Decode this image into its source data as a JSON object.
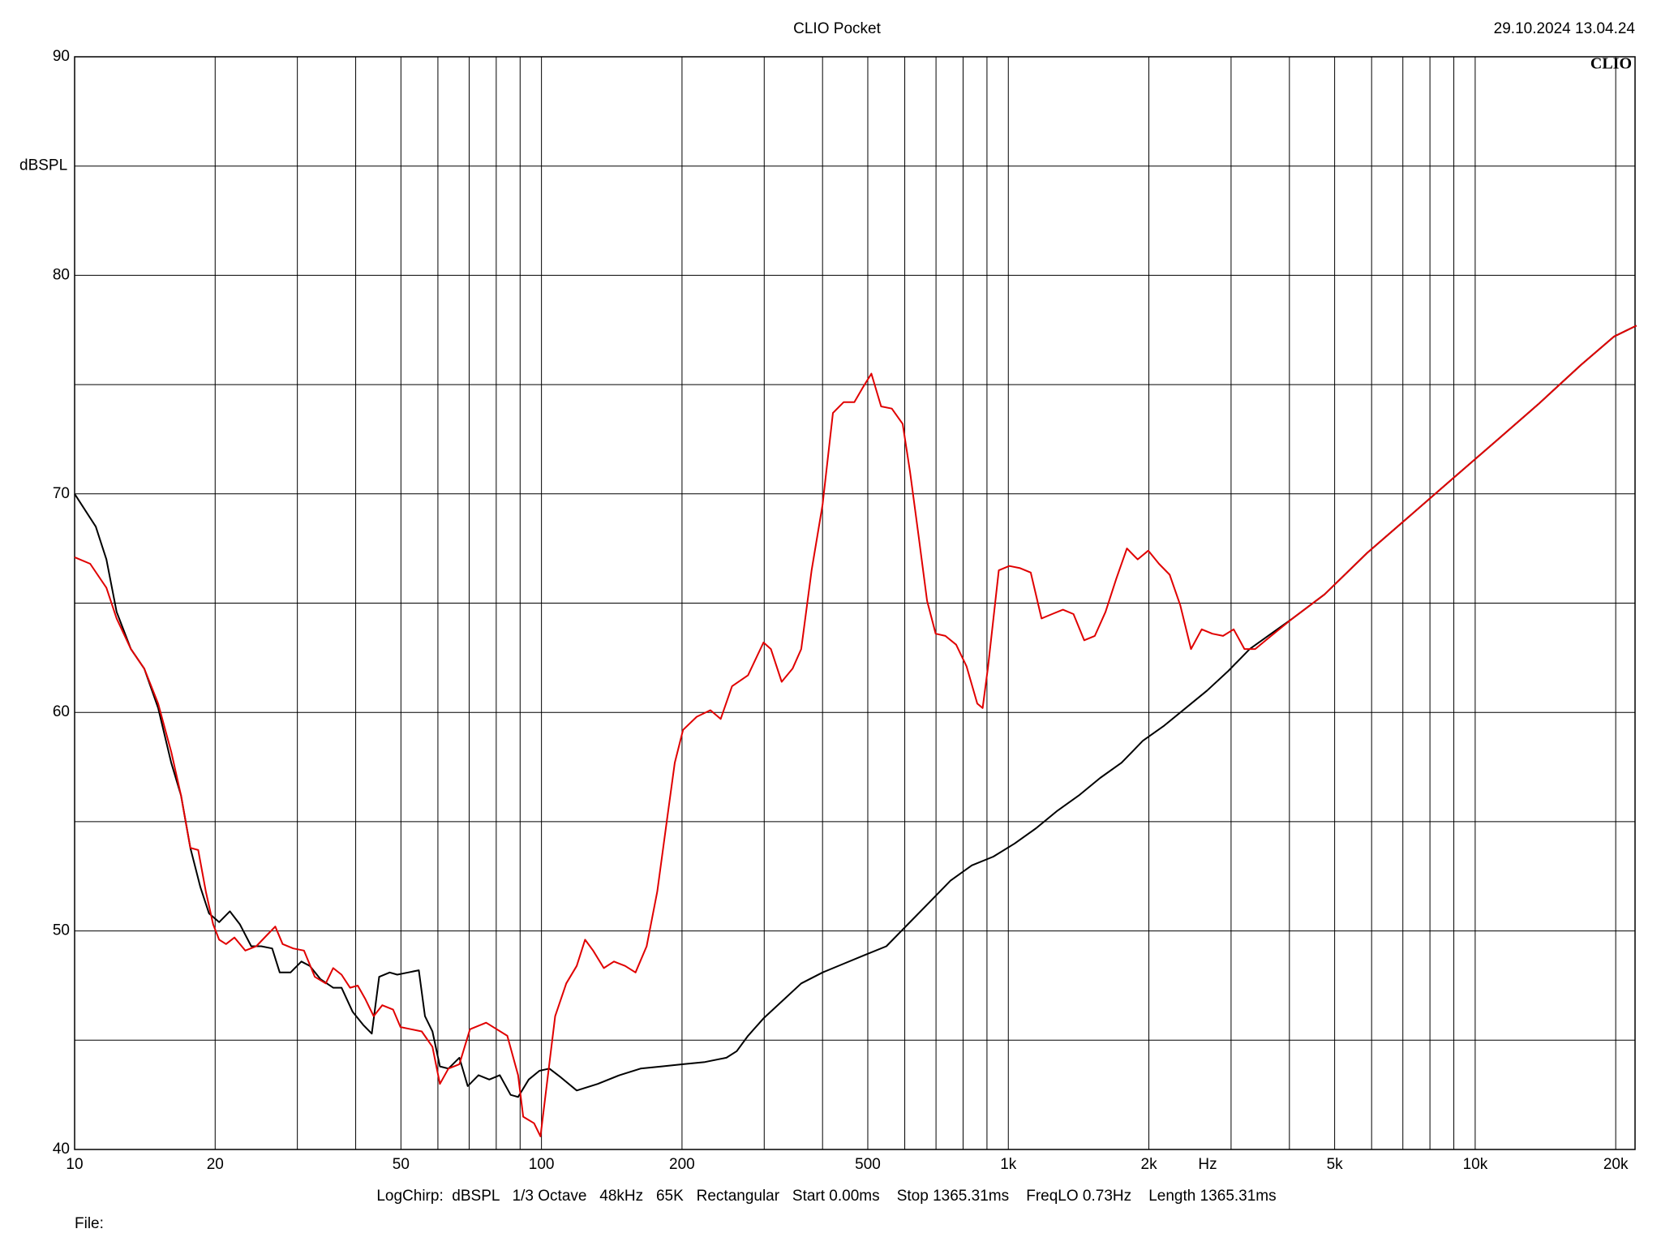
{
  "chart_data": {
    "type": "line",
    "title": "CLIO Pocket",
    "date": "29.10.2024 13.04.24",
    "logo": "CLIO",
    "y_label": "dBSPL",
    "x_label": "Hz",
    "footer": "LogChirp:  dBSPL   1/3 Octave   48kHz   65K   Rectangular   Start 0.00ms    Stop 1365.31ms    FreqLO 0.73Hz    Length 1365.31ms",
    "file_label": "File:",
    "xlog": true,
    "grid": true,
    "xlim": [
      10,
      22000
    ],
    "ylim": [
      40,
      90
    ],
    "xticks": [
      10,
      20,
      50,
      100,
      200,
      500,
      {
        "value": 1000,
        "label": "1k"
      },
      {
        "value": 2000,
        "label": "2k"
      },
      {
        "value": 5000,
        "label": "5k"
      },
      {
        "value": 10000,
        "label": "10k"
      },
      {
        "value": 20000,
        "label": "20k"
      }
    ],
    "xminor": [
      30,
      40,
      60,
      70,
      80,
      90,
      300,
      400,
      600,
      700,
      800,
      900,
      3000,
      4000,
      6000,
      7000,
      8000,
      9000
    ],
    "yticks": [
      40,
      50,
      60,
      70,
      80,
      90
    ],
    "yminor": [
      45,
      55,
      65,
      75,
      85
    ],
    "series": [
      {
        "color": "#000000",
        "x": [
          10,
          11.1,
          11.7,
          12.3,
          13.2,
          14.1,
          15.1,
          16.1,
          16.9,
          17.7,
          18.6,
          19.4,
          20.4,
          21.5,
          22.6,
          23.9,
          25.1,
          26.5,
          27.5,
          29.0,
          30.6,
          31.9,
          33.6,
          35.8,
          37.3,
          39.4,
          41.5,
          43.3,
          44.9,
          47.3,
          49.1,
          51.8,
          54.6,
          56.3,
          58.4,
          60.6,
          63.2,
          66.7,
          69.5,
          73.3,
          77.3,
          81.4,
          85.9,
          89.1,
          93.9,
          99.0,
          104,
          110,
          119,
          132,
          147,
          163,
          181,
          201,
          224,
          249,
          262,
          277,
          299,
          332,
          360,
          400,
          444,
          493,
          548,
          609,
          677,
          752,
          835,
          929,
          1032,
          1147,
          1274,
          1416,
          1573,
          1748,
          1941,
          2158,
          2399,
          2665,
          2961,
          3289,
          3656,
          4062,
          4757,
          5873,
          7252,
          8954,
          11060,
          13650,
          16850,
          19840,
          22160
        ],
        "values": [
          70.0,
          68.5,
          67.0,
          64.6,
          62.9,
          62.0,
          60.2,
          57.7,
          56.2,
          53.8,
          52.0,
          50.8,
          50.4,
          50.9,
          50.3,
          49.3,
          49.3,
          49.2,
          48.1,
          48.1,
          48.6,
          48.4,
          47.8,
          47.4,
          47.4,
          46.3,
          45.7,
          45.3,
          47.9,
          48.1,
          48.0,
          48.1,
          48.2,
          46.1,
          45.4,
          43.8,
          43.7,
          44.2,
          42.9,
          43.4,
          43.2,
          43.4,
          42.5,
          42.4,
          43.2,
          43.6,
          43.7,
          43.3,
          42.7,
          43.0,
          43.4,
          43.7,
          43.8,
          43.9,
          44.0,
          44.2,
          44.5,
          45.2,
          46.0,
          46.9,
          47.6,
          48.1,
          48.5,
          48.9,
          49.3,
          50.3,
          51.3,
          52.3,
          53.0,
          53.4,
          54.0,
          54.7,
          55.5,
          56.2,
          57.0,
          57.7,
          58.7,
          59.4,
          60.2,
          61.0,
          61.9,
          62.9,
          63.6,
          64.3,
          65.4,
          67.3,
          69.0,
          70.7,
          72.4,
          74.1,
          75.9,
          77.2,
          77.7
        ]
      },
      {
        "color": "#e00000",
        "x": [
          10,
          10.8,
          11.7,
          12.3,
          13.2,
          14.1,
          15.1,
          16.1,
          16.9,
          17.7,
          18.4,
          19.1,
          19.8,
          20.4,
          21.1,
          22.0,
          23.2,
          24.5,
          25.8,
          26.9,
          27.9,
          29.4,
          31.0,
          32.7,
          34.5,
          35.8,
          37.3,
          38.9,
          40.4,
          41.9,
          43.7,
          45.6,
          48.1,
          49.9,
          52.6,
          55.4,
          58.4,
          60.6,
          63.2,
          66.7,
          70.3,
          76.1,
          80.2,
          84.5,
          89.1,
          91.4,
          96.4,
          99.5,
          102.7,
          107,
          113,
          119,
          124,
          129,
          136,
          143,
          151,
          159,
          168,
          177,
          186,
          193,
          201,
          215,
          230,
          242,
          256,
          277,
          299,
          310,
          327,
          345,
          360,
          379,
          400,
          421,
          444,
          468,
          489,
          509,
          534,
          563,
          594,
          616,
          643,
          670,
          699,
          733,
          773,
          814,
          858,
          881,
          905,
          954,
          1005,
          1060,
          1117,
          1178,
          1241,
          1309,
          1379,
          1454,
          1532,
          1615,
          1702,
          1795,
          1892,
          1994,
          2102,
          2216,
          2335,
          2462,
          2595,
          2735,
          2884,
          3039,
          3204,
          3378,
          3656,
          4062,
          4757,
          5873,
          7252,
          8954,
          11060,
          13650,
          16850,
          19840,
          22160
        ],
        "values": [
          67.1,
          66.8,
          65.7,
          64.3,
          62.9,
          62.0,
          60.4,
          58.2,
          56.2,
          53.8,
          53.7,
          51.8,
          50.3,
          49.6,
          49.4,
          49.7,
          49.1,
          49.3,
          49.8,
          50.2,
          49.4,
          49.2,
          49.1,
          47.9,
          47.6,
          48.3,
          48.0,
          47.4,
          47.5,
          46.9,
          46.1,
          46.6,
          46.4,
          45.6,
          45.5,
          45.4,
          44.7,
          43.0,
          43.7,
          43.9,
          45.5,
          45.8,
          45.5,
          45.2,
          43.4,
          41.5,
          41.2,
          40.6,
          43.0,
          46.1,
          47.6,
          48.4,
          49.6,
          49.1,
          48.3,
          48.6,
          48.4,
          48.1,
          49.3,
          51.8,
          55.2,
          57.7,
          59.2,
          59.8,
          60.1,
          59.7,
          61.2,
          61.7,
          63.2,
          62.9,
          61.4,
          62.0,
          62.9,
          66.5,
          69.5,
          73.7,
          74.2,
          74.2,
          74.9,
          75.5,
          74.0,
          73.9,
          73.2,
          71.0,
          68.0,
          65.1,
          63.6,
          63.5,
          63.1,
          62.1,
          60.4,
          60.2,
          62.1,
          66.5,
          66.7,
          66.6,
          66.4,
          64.3,
          64.5,
          64.7,
          64.5,
          63.3,
          63.5,
          64.6,
          66.1,
          67.5,
          67.0,
          67.4,
          66.8,
          66.3,
          64.9,
          62.9,
          63.8,
          63.6,
          63.5,
          63.8,
          62.9,
          62.9,
          63.5,
          64.3,
          65.4,
          67.3,
          69.0,
          70.7,
          72.4,
          74.1,
          75.9,
          77.2,
          77.7
        ]
      }
    ]
  }
}
